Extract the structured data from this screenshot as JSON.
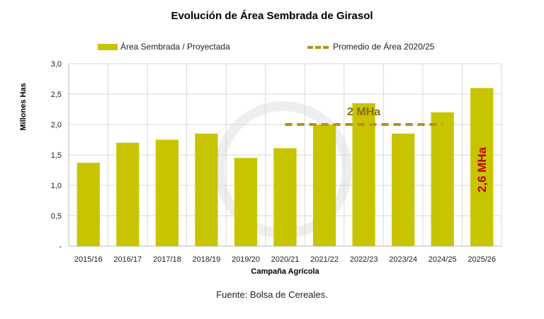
{
  "chart_data": {
    "type": "bar",
    "title": "Evolución de Área Sembrada de Girasol",
    "xlabel": "Campaña Agrícola",
    "ylabel": "Millones Has",
    "categories": [
      "2015/16",
      "2016/17",
      "2017/18",
      "2018/19",
      "2019/20",
      "2020/21",
      "2021/22",
      "2022/23",
      "2023/24",
      "2024/25",
      "2025/26"
    ],
    "series": [
      {
        "name": "Área Sembrada / Proyectada",
        "values": [
          1.37,
          1.7,
          1.75,
          1.85,
          1.45,
          1.61,
          2.0,
          2.35,
          1.85,
          2.2,
          2.6
        ],
        "color": "#c8c400"
      }
    ],
    "average": {
      "name": "Promedio de Área 2020/25",
      "value": 2.0,
      "from": "2020/21",
      "to": "2024/25",
      "label": "2 MHa",
      "color": "#b8901a"
    },
    "annotation": {
      "text": "2,6 MHa",
      "category": "2025/26",
      "color": "#c00000"
    },
    "ylim": [
      0,
      3
    ],
    "yticks": [
      {
        "v": 0,
        "label": "-"
      },
      {
        "v": 0.5,
        "label": "0,5"
      },
      {
        "v": 1,
        "label": "1,0"
      },
      {
        "v": 1.5,
        "label": "1,5"
      },
      {
        "v": 2,
        "label": "2,0"
      },
      {
        "v": 2.5,
        "label": "2,5"
      },
      {
        "v": 3,
        "label": "3,0"
      }
    ],
    "grid": true,
    "legend_position": "top"
  },
  "source": "Fuente: Bolsa de Cereales."
}
